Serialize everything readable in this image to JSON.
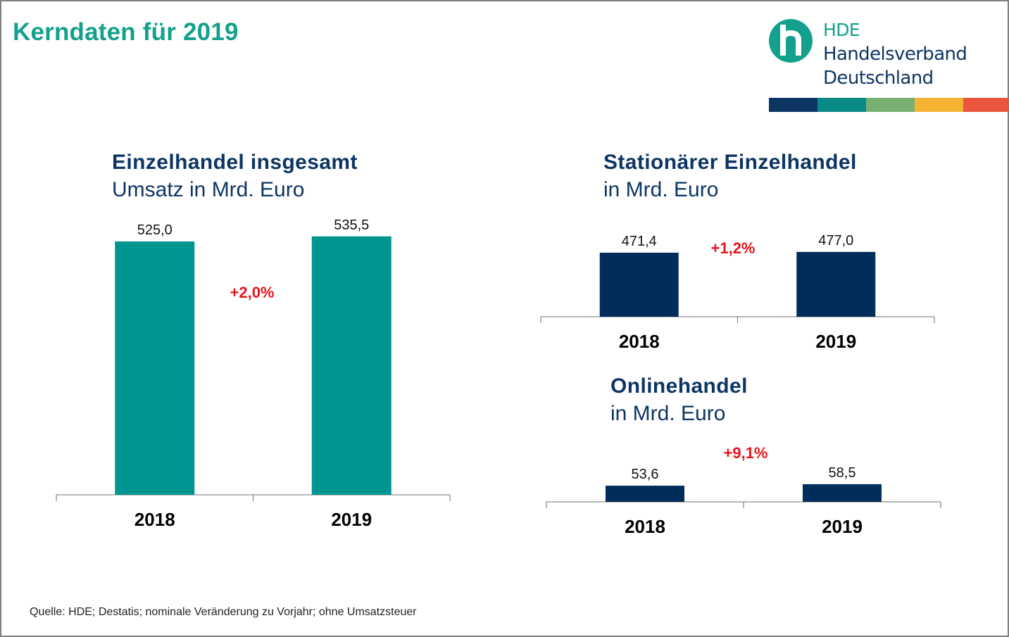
{
  "page": {
    "title": "Kerndaten für 2019",
    "source": "Quelle: HDE; Destatis; nominale Veränderung zu Vorjahr; ohne Umsatzsteuer"
  },
  "logo": {
    "abbr": "HDE",
    "line1": "Handelsverband",
    "line2": "Deutschland",
    "icon": "hde-h-circle-icon",
    "stripe_colors": [
      "#0d3563",
      "#0a8a87",
      "#78b073",
      "#f4b333",
      "#e9553d"
    ]
  },
  "colors": {
    "teal": "#009591",
    "navy": "#002d5a",
    "change": "#e8141a",
    "title": "#13a08c"
  },
  "chart_data": [
    {
      "id": "einzelhandel",
      "type": "bar",
      "title": "Einzelhandel insgesamt",
      "subtitle": "Umsatz in Mrd. Euro",
      "categories": [
        "2018",
        "2019"
      ],
      "values": [
        525.0,
        535.5
      ],
      "value_labels": [
        "525,0",
        "535,5"
      ],
      "change_label": "+2,0%",
      "color": "#009591",
      "ylim": [
        0,
        545
      ],
      "grid": false,
      "legend": "none"
    },
    {
      "id": "stationaer",
      "type": "bar",
      "title": "Stationärer Einzelhandel",
      "subtitle": "in Mrd. Euro",
      "categories": [
        "2018",
        "2019"
      ],
      "values": [
        471.4,
        477.0
      ],
      "value_labels": [
        "471,4",
        "477,0"
      ],
      "change_label": "+1,2%",
      "color": "#002d5a",
      "ylim": [
        0,
        500
      ],
      "grid": false,
      "legend": "none"
    },
    {
      "id": "online",
      "type": "bar",
      "title": "Onlinehandel",
      "subtitle": "in Mrd. Euro",
      "categories": [
        "2018",
        "2019"
      ],
      "values": [
        53.6,
        58.5
      ],
      "value_labels": [
        "53,6",
        "58,5"
      ],
      "change_label": "+9,1%",
      "color": "#002d5a",
      "ylim": [
        0,
        500
      ],
      "grid": false,
      "legend": "none"
    }
  ]
}
